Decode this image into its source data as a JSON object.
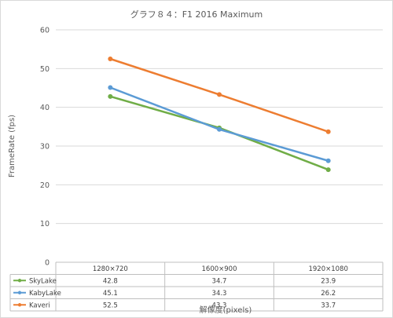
{
  "chart_data": {
    "type": "line",
    "title": "グラフ８４：F1 2016 Maximum",
    "xlabel": "解像度(pixels)",
    "ylabel": "FrameRate (fps)",
    "categories": [
      "1280×720",
      "1600×900",
      "1920×1080"
    ],
    "ylim": [
      0,
      60
    ],
    "yticks": [
      "0",
      "10",
      "20",
      "30",
      "40",
      "50",
      "60"
    ],
    "grid": true,
    "legend": "data-table",
    "series": [
      {
        "name": "SkyLake",
        "color": "#70ad47",
        "values": [
          42.8,
          34.7,
          23.9
        ],
        "labels": [
          "42.8",
          "34.7",
          "23.9"
        ]
      },
      {
        "name": "KabyLake",
        "color": "#5b9bd5",
        "values": [
          45.1,
          34.3,
          26.2
        ],
        "labels": [
          "45.1",
          "34.3",
          "26.2"
        ]
      },
      {
        "name": "Kaveri",
        "color": "#ed7d31",
        "values": [
          52.5,
          43.3,
          33.7
        ],
        "labels": [
          "52.5",
          "43.3",
          "33.7"
        ]
      }
    ]
  }
}
